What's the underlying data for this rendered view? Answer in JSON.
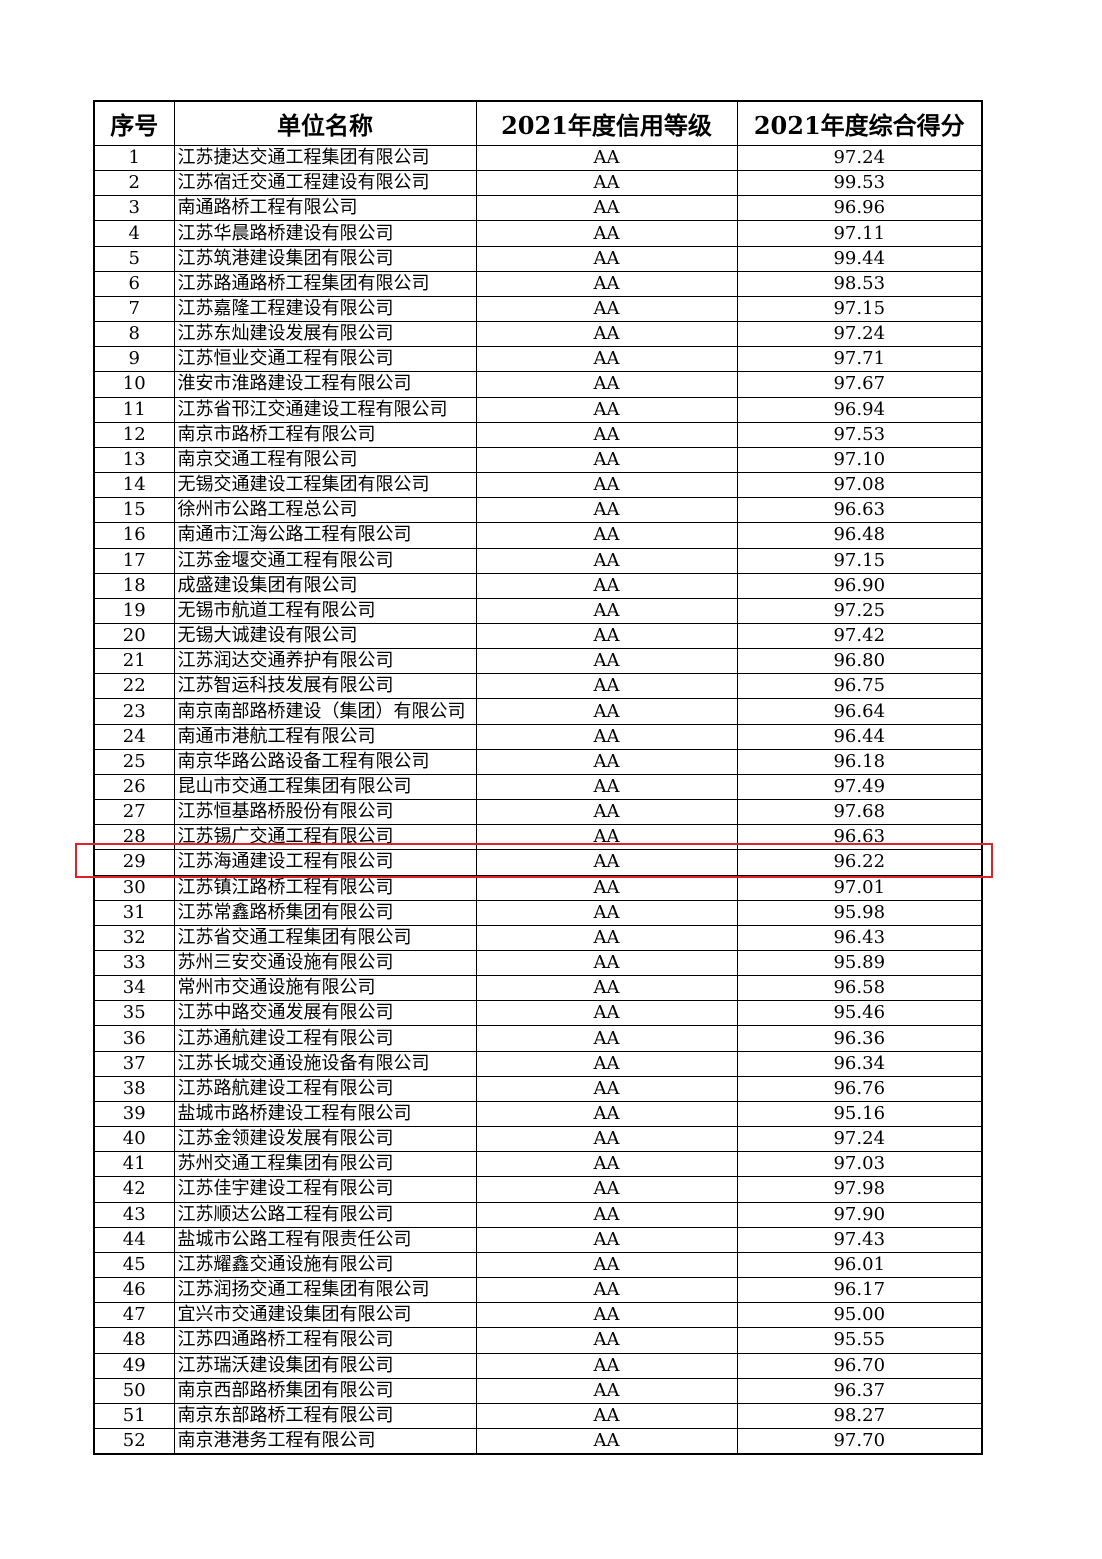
{
  "table": {
    "header": [
      "序号",
      "单位名称",
      "2021年度信用等级",
      "2021年度综合得分"
    ],
    "rows": [
      [
        "1",
        "江苏捷达交通工程集团有限公司",
        "AA",
        "97.24"
      ],
      [
        "2",
        "江苏宿迁交通工程建设有限公司",
        "AA",
        "99.53"
      ],
      [
        "3",
        "南通路桥工程有限公司",
        "AA",
        "96.96"
      ],
      [
        "4",
        "江苏华晨路桥建设有限公司",
        "AA",
        "97.11"
      ],
      [
        "5",
        "江苏筑港建设集团有限公司",
        "AA",
        "99.44"
      ],
      [
        "6",
        "江苏路通路桥工程集团有限公司",
        "AA",
        "98.53"
      ],
      [
        "7",
        "江苏嘉隆工程建设有限公司",
        "AA",
        "97.15"
      ],
      [
        "8",
        "江苏东灿建设发展有限公司",
        "AA",
        "97.24"
      ],
      [
        "9",
        "江苏恒业交通工程有限公司",
        "AA",
        "97.71"
      ],
      [
        "10",
        "淮安市淮路建设工程有限公司",
        "AA",
        "97.67"
      ],
      [
        "11",
        "江苏省邗江交通建设工程有限公司",
        "AA",
        "96.94"
      ],
      [
        "12",
        "南京市路桥工程有限公司",
        "AA",
        "97.53"
      ],
      [
        "13",
        "南京交通工程有限公司",
        "AA",
        "97.10"
      ],
      [
        "14",
        "无锡交通建设工程集团有限公司",
        "AA",
        "97.08"
      ],
      [
        "15",
        "徐州市公路工程总公司",
        "AA",
        "96.63"
      ],
      [
        "16",
        "南通市江海公路工程有限公司",
        "AA",
        "96.48"
      ],
      [
        "17",
        "江苏金堰交通工程有限公司",
        "AA",
        "97.15"
      ],
      [
        "18",
        "成盛建设集团有限公司",
        "AA",
        "96.90"
      ],
      [
        "19",
        "无锡市航道工程有限公司",
        "AA",
        "97.25"
      ],
      [
        "20",
        "无锡大诚建设有限公司",
        "AA",
        "97.42"
      ],
      [
        "21",
        "江苏润达交通养护有限公司",
        "AA",
        "96.80"
      ],
      [
        "22",
        "江苏智运科技发展有限公司",
        "AA",
        "96.75"
      ],
      [
        "23",
        "南京南部路桥建设（集团）有限公司",
        "AA",
        "96.64"
      ],
      [
        "24",
        "南通市港航工程有限公司",
        "AA",
        "96.44"
      ],
      [
        "25",
        "南京华路公路设备工程有限公司",
        "AA",
        "96.18"
      ],
      [
        "26",
        "昆山市交通工程集团有限公司",
        "AA",
        "97.49"
      ],
      [
        "27",
        "江苏恒基路桥股份有限公司",
        "AA",
        "97.68"
      ],
      [
        "28",
        "江苏锡广交通工程有限公司",
        "AA",
        "96.63"
      ],
      [
        "29",
        "江苏海通建设工程有限公司",
        "AA",
        "96.22"
      ],
      [
        "30",
        "江苏镇江路桥工程有限公司",
        "AA",
        "97.01"
      ],
      [
        "31",
        "江苏常鑫路桥集团有限公司",
        "AA",
        "95.98"
      ],
      [
        "32",
        "江苏省交通工程集团有限公司",
        "AA",
        "96.43"
      ],
      [
        "33",
        "苏州三安交通设施有限公司",
        "AA",
        "95.89"
      ],
      [
        "34",
        "常州市交通设施有限公司",
        "AA",
        "96.58"
      ],
      [
        "35",
        "江苏中路交通发展有限公司",
        "AA",
        "95.46"
      ],
      [
        "36",
        "江苏通航建设工程有限公司",
        "AA",
        "96.36"
      ],
      [
        "37",
        "江苏长城交通设施设备有限公司",
        "AA",
        "96.34"
      ],
      [
        "38",
        "江苏路航建设工程有限公司",
        "AA",
        "96.76"
      ],
      [
        "39",
        "盐城市路桥建设工程有限公司",
        "AA",
        "95.16"
      ],
      [
        "40",
        "江苏金领建设发展有限公司",
        "AA",
        "97.24"
      ],
      [
        "41",
        "苏州交通工程集团有限公司",
        "AA",
        "97.03"
      ],
      [
        "42",
        "江苏佳宇建设工程有限公司",
        "AA",
        "97.98"
      ],
      [
        "43",
        "江苏顺达公路工程有限公司",
        "AA",
        "97.90"
      ],
      [
        "44",
        "盐城市公路工程有限责任公司",
        "AA",
        "97.43"
      ],
      [
        "45",
        "江苏耀鑫交通设施有限公司",
        "AA",
        "96.01"
      ],
      [
        "46",
        "江苏润扬交通工程集团有限公司",
        "AA",
        "96.17"
      ],
      [
        "47",
        "宜兴市交通建设集团有限公司",
        "AA",
        "95.00"
      ],
      [
        "48",
        "江苏四通路桥工程有限公司",
        "AA",
        "95.55"
      ],
      [
        "49",
        "江苏瑞沃建设集团有限公司",
        "AA",
        "96.70"
      ],
      [
        "50",
        "南京西部路桥集团有限公司",
        "AA",
        "96.37"
      ],
      [
        "51",
        "南京东部路桥工程有限公司",
        "AA",
        "98.27"
      ],
      [
        "52",
        "南京港港务工程有限公司",
        "AA",
        "97.70"
      ]
    ]
  }
}
